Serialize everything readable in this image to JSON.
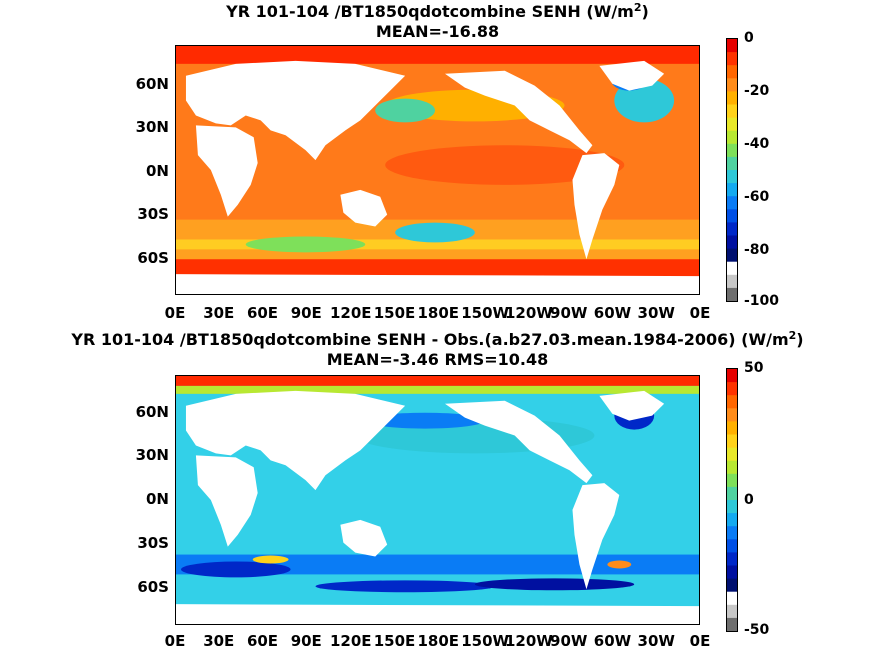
{
  "top_panel": {
    "title_main": "YR 101-104 /BT1850qdotcombine  SENH (W/m",
    "title_sup": "2",
    "title_end": ")",
    "subtitle": "MEAN=-16.88",
    "colorbar_ticks": [
      "0",
      "-20",
      "-40",
      "-60",
      "-80",
      "-100"
    ],
    "colorbar_colors": [
      "#e60000",
      "#ff3300",
      "#ff6600",
      "#ff8c1a",
      "#ffb000",
      "#ffd21a",
      "#e8e82a",
      "#b8e832",
      "#7ee05a",
      "#4fd2a0",
      "#2ec8d8",
      "#14aaf0",
      "#0a7cf5",
      "#0050e6",
      "#0028c8",
      "#0010a0",
      "#001070",
      "#ffffff",
      "#c8c8c8",
      "#6e6e6e"
    ]
  },
  "bottom_panel": {
    "title_main": "YR 101-104 /BT1850qdotcombine SENH - Obs.(a.b27.03.mean.1984-2006) (W/m",
    "title_sup": "2",
    "title_end": ")",
    "subtitle": "MEAN=-3.46 RMS=10.48",
    "colorbar_ticks": [
      "50",
      "0",
      "-50"
    ],
    "colorbar_colors": [
      "#e60000",
      "#ff3300",
      "#ff6600",
      "#ff8c1a",
      "#ffb000",
      "#ffd21a",
      "#e8e82a",
      "#b8e832",
      "#7ee05a",
      "#4fd2a0",
      "#2ec8d8",
      "#14aaf0",
      "#0a7cf5",
      "#0050e6",
      "#0028c8",
      "#0010a0",
      "#001070",
      "#ffffff",
      "#c8c8c8",
      "#6e6e6e"
    ]
  },
  "lat_labels": [
    "60N",
    "30N",
    "0N",
    "30S",
    "60S"
  ],
  "lon_labels": [
    "0E",
    "30E",
    "60E",
    "90E",
    "120E",
    "150E",
    "180E",
    "150W",
    "120W",
    "90W",
    "60W",
    "30W",
    "0E"
  ],
  "colors": {
    "land": "#ffffff",
    "ocean_top": "#ff7a1a",
    "ocean_bottom": "#33d0e8"
  }
}
